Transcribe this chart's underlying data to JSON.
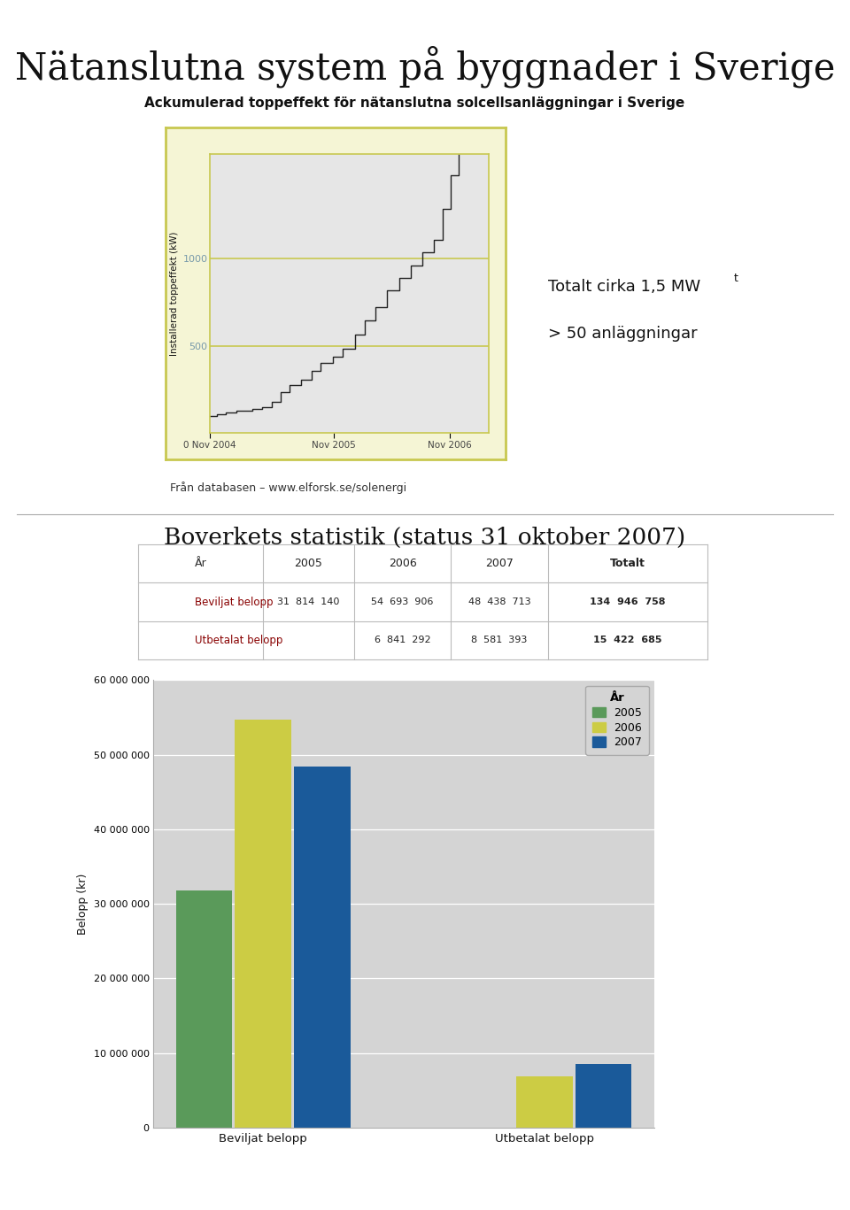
{
  "main_title": "Nätanslutna system på byggnader i Sverige",
  "main_title_fontsize": 30,
  "section1_subtitle": "Ackumulerad toppeffekt för nätanslutna solcellsanläggningar i Sverige",
  "section1_subtitle_fontsize": 11,
  "line_chart_ylabel": "Installerad toppeffekt (kW)",
  "line_chart_yticks": [
    500,
    1000
  ],
  "line_chart_xticks": [
    "0 Nov 2004",
    "Nov 2005",
    "Nov 2006"
  ],
  "line_chart_bg_outer": "#f5f5d5",
  "line_chart_bg_inner": "#e6e6e6",
  "line_chart_grid_color": "#c8c850",
  "line_chart_line_color": "#222222",
  "line_chart_ytick_color": "#7799aa",
  "annotation_line1": "Totalt cirka 1,5 MW",
  "annotation_sub": "t",
  "annotation_line2": "> 50 anläggningar",
  "annotation_fontsize": 13,
  "source_text": "Från databasen – www.elforsk.se/solenergi",
  "source_fontsize": 9,
  "section2_title": "Boverkets statistik (status 31 oktober 2007)",
  "section2_title_fontsize": 19,
  "table_header": [
    "År",
    "2005",
    "2006",
    "2007",
    "Totalt"
  ],
  "table_row1_label": "Beviljat belopp",
  "table_row1_values": [
    "31  814  140",
    "54  693  906",
    "48  438  713",
    "134  946  758"
  ],
  "table_row2_label": "Utbetalat belopp",
  "table_row2_values": [
    "",
    "6  841  292",
    "8  581  393",
    "15  422  685"
  ],
  "table_label_color": "#880000",
  "table_border_color": "#bbbbbb",
  "bar_categories": [
    "Beviljat belopp",
    "Utbetalat belopp"
  ],
  "bar_values_2005": [
    31814140,
    0
  ],
  "bar_values_2006": [
    54693906,
    6841292
  ],
  "bar_values_2007": [
    48438713,
    8581393
  ],
  "bar_color_2005": "#5a9a5a",
  "bar_color_2006": "#cccc44",
  "bar_color_2007": "#1a5a9a",
  "bar_chart_ylabel": "Belopp (kr)",
  "bar_chart_bg": "#d4d4d4",
  "bar_chart_ylim": [
    0,
    60000000
  ],
  "bar_chart_yticks": [
    0,
    10000000,
    20000000,
    30000000,
    40000000,
    50000000,
    60000000
  ],
  "legend_title": "År",
  "divider_color": "#aaaaaa",
  "page_bg": "#ffffff"
}
